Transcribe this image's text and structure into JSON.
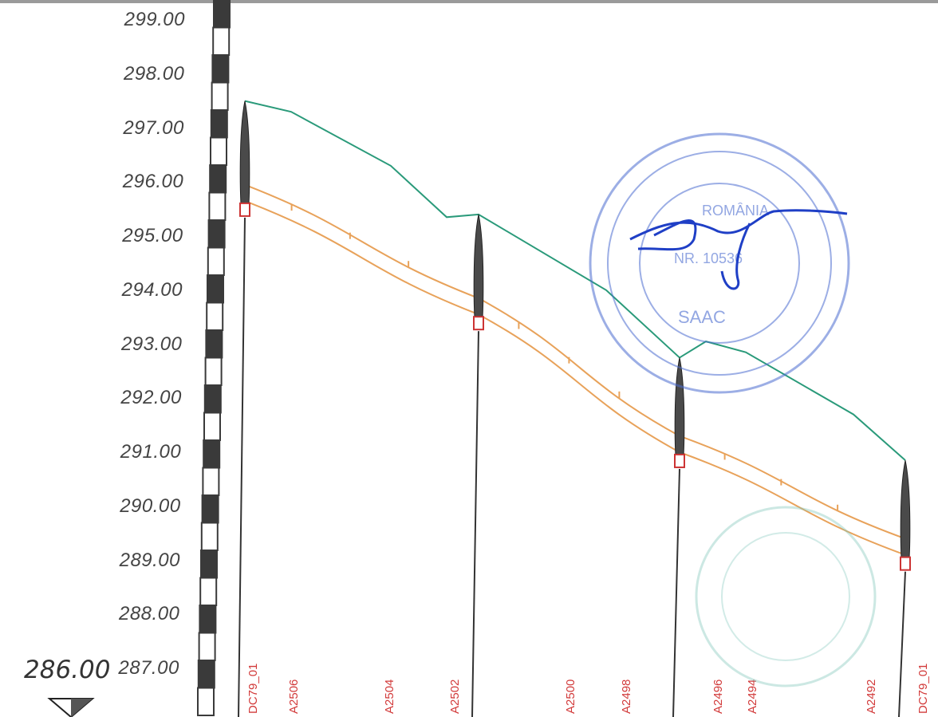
{
  "elevation_axis": {
    "labels": [
      "299.00",
      "298.00",
      "297.00",
      "296.00",
      "295.00",
      "294.00",
      "293.00",
      "292.00",
      "291.00",
      "290.00",
      "289.00",
      "288.00",
      "287.00"
    ],
    "datum_label": "286.00"
  },
  "manholes": [
    {
      "label": "DC79_01",
      "ground": 297.5,
      "invert": 295.4
    },
    {
      "label": "A2502",
      "ground": 295.4,
      "invert": 293.3
    },
    {
      "label": "A2496",
      "ground": 292.75,
      "invert": 290.75
    },
    {
      "label": "DC79_01",
      "ground": 290.85,
      "invert": 288.85
    }
  ],
  "station_labels": [
    "A2506",
    "A2504",
    "A2500",
    "A2498",
    "A2494",
    "A2492"
  ],
  "colors": {
    "ground_line": "#2a9a7a",
    "pipe": "#e8a25a",
    "station_text": "#d23a3a",
    "stamp": "#4a6ccf",
    "signature": "#1f3fc6"
  },
  "stamp": {
    "text_top": "ROMÂNIA",
    "text_number": "NR. 10536",
    "text_bottom": "SAAC"
  }
}
